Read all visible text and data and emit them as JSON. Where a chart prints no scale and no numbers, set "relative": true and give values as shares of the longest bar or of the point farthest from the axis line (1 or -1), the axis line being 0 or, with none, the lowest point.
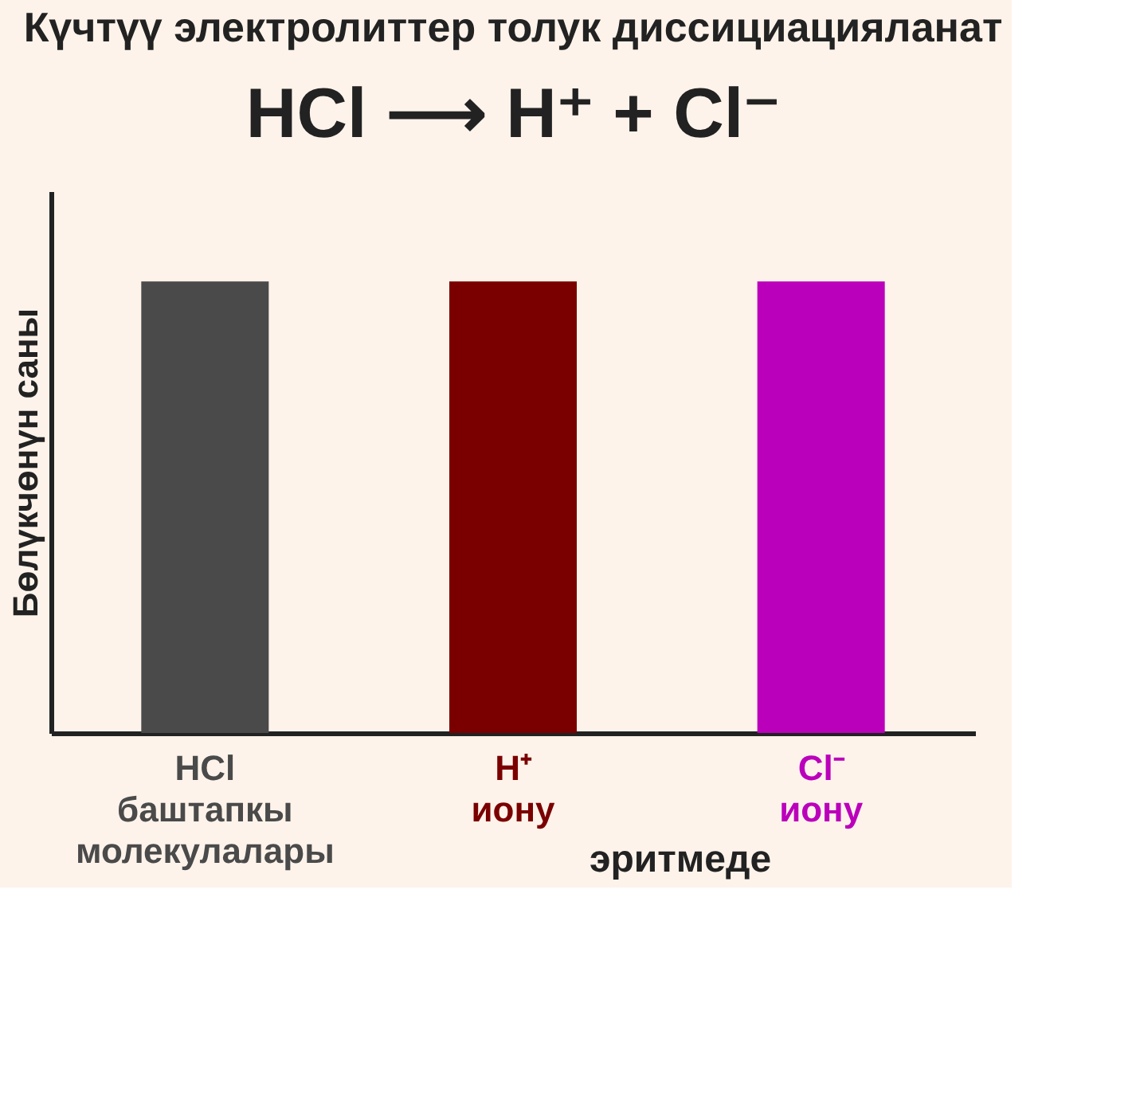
{
  "chart_data": {
    "type": "bar",
    "title": "Күчтүү электролиттер толук диссициацияланат",
    "subtitle": "HCl ⟶ H⁺ + Cl⁻",
    "ylabel": "Бөлүкчөнүн саны",
    "categories": [
      "HCl баштапкы молекулалары",
      "H⁺ иону",
      "Cl⁻ иону"
    ],
    "values": [
      1,
      1,
      1
    ],
    "colors": [
      "#4a4a4a",
      "#7a0000",
      "#bb00bb"
    ],
    "relative": true,
    "annotations": [
      "эритмеде"
    ]
  }
}
